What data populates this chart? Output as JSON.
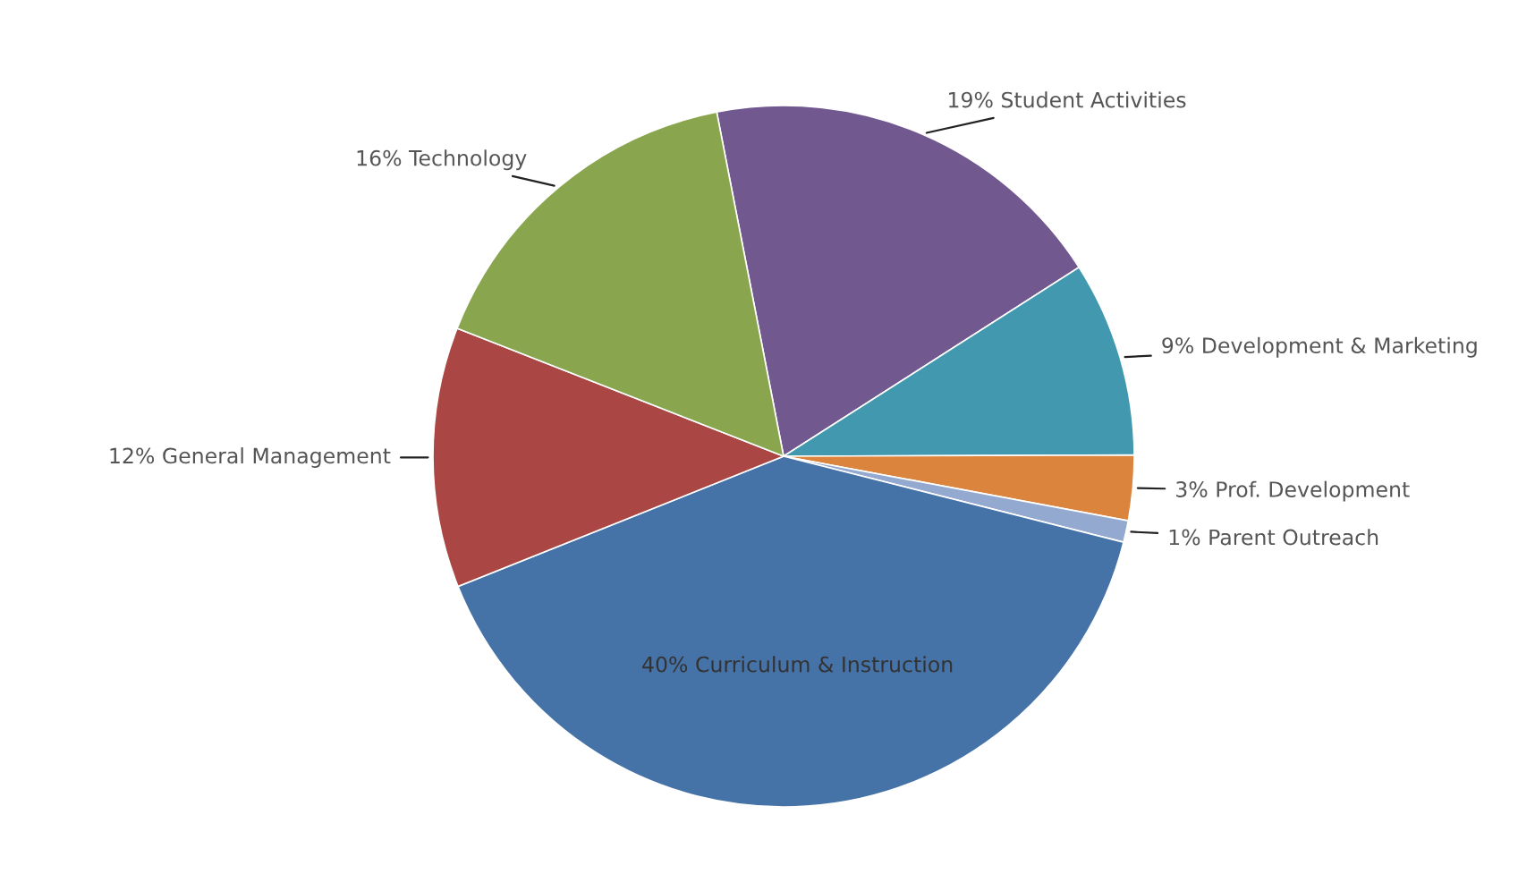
{
  "chart_data": {
    "type": "pie",
    "categories": [
      "Student Activities",
      "Development & Marketing",
      "Prof. Development",
      "Parent Outreach",
      "Curriculum & Instruction",
      "General Management",
      "Technology"
    ],
    "values": [
      19,
      9,
      3,
      1,
      40,
      12,
      16
    ],
    "value_labels": [
      "19%",
      "9%",
      "3%",
      "1%",
      "40%",
      "12%",
      "16%"
    ],
    "colors": [
      "#71588f",
      "#4198af",
      "#db843d",
      "#93a9cf",
      "#4572a7",
      "#aa4643",
      "#89a54e"
    ],
    "legend": false
  }
}
